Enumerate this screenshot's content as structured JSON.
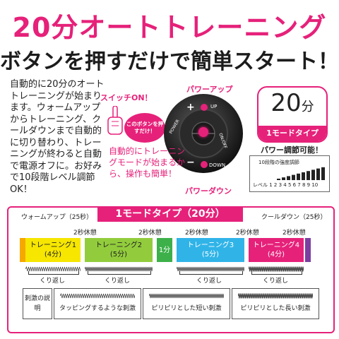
{
  "header": {
    "title": "20分オートトレーニング",
    "subtitle": "ボタンを押すだけで簡単スタート！"
  },
  "intro": {
    "text": "自動的に20分のオートトレーニングが始まります。ウォームアップからトレーニング、クールダウンまで自動的に切り替わり、トレーニングが終わると自動で電源オフに。お好みで10段階レベル調節OK！"
  },
  "controller": {
    "switch_label": "スイッチON！",
    "bubble_text": "このボタンを押すだけ！",
    "power_up_label": "パワーアップ",
    "power_down_label": "パワーダウン",
    "up_button": "UP",
    "down_button": "DOWN",
    "power_button": "POWER",
    "on_off": "ON/OFF",
    "plus": "+",
    "minus": "−",
    "auto_text": "自動的にトレーニングモードが始まるから、操作も簡単！"
  },
  "badge": {
    "minutes": "20",
    "unit": "分",
    "type": "1モードタイプ"
  },
  "power_adjust": {
    "title": "パワー調節可能！",
    "head": "10段階の強度調節",
    "levels_label": "レベル",
    "levels": "1 2 3 4 5 6 7 8 9 10",
    "level_count": 10
  },
  "mode": {
    "title": "1モードタイプ（20分）",
    "warmup": "ウォームアップ（25秒）",
    "cooldown": "クールダウン（25秒）",
    "rest": "2秒休憩",
    "segments": [
      {
        "name": "トレーニング1",
        "time": "(4分)",
        "color": "#f6e600"
      },
      {
        "name": "トレーニング2",
        "time": "(5分)",
        "color": "#92cc3c"
      },
      {
        "name": "1分",
        "time": "",
        "color": "#3db04a"
      },
      {
        "name": "トレーニング3",
        "time": "(5分)",
        "color": "#30b4e8"
      },
      {
        "name": "トレーニング4",
        "time": "(4分)",
        "color": "#e6217a"
      }
    ],
    "repeat": "くり返し",
    "stimulus_label": "刺激の説明",
    "stimulus": [
      "タッピングするような刺激",
      "ピリピリとした短い刺激",
      "ピリピリとした長い刺激"
    ]
  },
  "colors": {
    "accent": "#e6217a",
    "dark": "#1c1c1c",
    "warmup": "#f6a800",
    "cooldown": "#7b3fa0"
  }
}
